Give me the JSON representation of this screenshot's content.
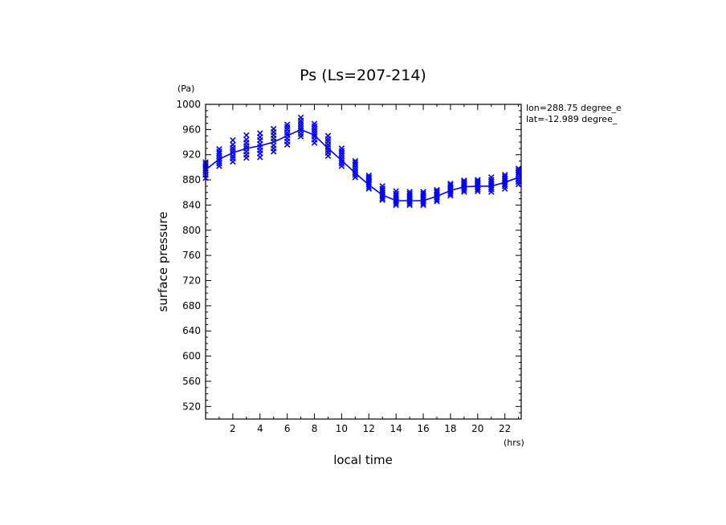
{
  "chart_data": {
    "type": "line",
    "title": "Ps (Ls=207-214)",
    "xlabel": "local time",
    "ylabel": "surface pressure",
    "x_unit": "(hrs)",
    "y_unit": "(Pa)",
    "xlim": [
      0,
      23.2
    ],
    "ylim": [
      500,
      1000
    ],
    "x_ticks": [
      2,
      4,
      6,
      8,
      10,
      12,
      14,
      16,
      18,
      20,
      22
    ],
    "y_ticks": [
      520,
      560,
      600,
      640,
      680,
      720,
      760,
      800,
      840,
      880,
      920,
      960,
      1000
    ],
    "annotations": [
      "lon=288.75 degree_e",
      "lat=-12.989 degree_"
    ],
    "series": [
      {
        "kind": "mean-line",
        "color": "#0000ff",
        "x": [
          0,
          1,
          2,
          3,
          4,
          5,
          6,
          7,
          8,
          9,
          10,
          11,
          12,
          13,
          14,
          15,
          16,
          17,
          18,
          19,
          20,
          21,
          22,
          23
        ],
        "y": [
          896,
          913,
          923,
          930,
          934,
          940,
          950,
          960,
          951,
          930,
          911,
          891,
          872,
          856,
          847,
          847,
          847,
          854,
          863,
          869,
          870,
          870,
          876,
          884
        ]
      },
      {
        "kind": "samples",
        "marker": "x",
        "color": "#0000ff",
        "x": [
          0,
          1,
          2,
          3,
          4,
          5,
          6,
          7,
          8,
          9,
          10,
          11,
          12,
          13,
          14,
          15,
          16,
          17,
          18,
          19,
          20,
          21,
          22,
          23
        ],
        "y_samples": [
          [
            883,
            888,
            892,
            896,
            899,
            902,
            905,
            908
          ],
          [
            902,
            906,
            910,
            914,
            918,
            922,
            925,
            929
          ],
          [
            909,
            914,
            918,
            923,
            927,
            931,
            936,
            943
          ],
          [
            915,
            920,
            925,
            930,
            934,
            939,
            944,
            951
          ],
          [
            916,
            922,
            927,
            932,
            937,
            943,
            948,
            954
          ],
          [
            925,
            930,
            935,
            941,
            946,
            951,
            956,
            961
          ],
          [
            936,
            941,
            946,
            951,
            955,
            960,
            964,
            968
          ],
          [
            949,
            953,
            958,
            962,
            966,
            970,
            974,
            979
          ],
          [
            939,
            944,
            949,
            953,
            957,
            961,
            965,
            969
          ],
          [
            918,
            923,
            927,
            932,
            936,
            941,
            945,
            950
          ],
          [
            902,
            906,
            910,
            914,
            918,
            922,
            926,
            930
          ],
          [
            884,
            888,
            892,
            896,
            900,
            904,
            907,
            910
          ],
          [
            866,
            869,
            873,
            876,
            879,
            882,
            884,
            887
          ],
          [
            848,
            851,
            854,
            857,
            860,
            863,
            866,
            870
          ],
          [
            840,
            843,
            846,
            849,
            852,
            855,
            858,
            862
          ],
          [
            840,
            843,
            846,
            849,
            852,
            855,
            858,
            861
          ],
          [
            840,
            843,
            846,
            849,
            852,
            855,
            858,
            861
          ],
          [
            846,
            849,
            852,
            855,
            857,
            860,
            862,
            864
          ],
          [
            855,
            858,
            861,
            864,
            867,
            869,
            872,
            874
          ],
          [
            861,
            864,
            867,
            870,
            873,
            875,
            877,
            879
          ],
          [
            862,
            865,
            868,
            871,
            874,
            876,
            878,
            880
          ],
          [
            861,
            865,
            868,
            871,
            874,
            877,
            880,
            884
          ],
          [
            866,
            870,
            873,
            876,
            879,
            882,
            885,
            888
          ],
          [
            873,
            877,
            881,
            885,
            889,
            892,
            895,
            898
          ]
        ]
      }
    ]
  }
}
